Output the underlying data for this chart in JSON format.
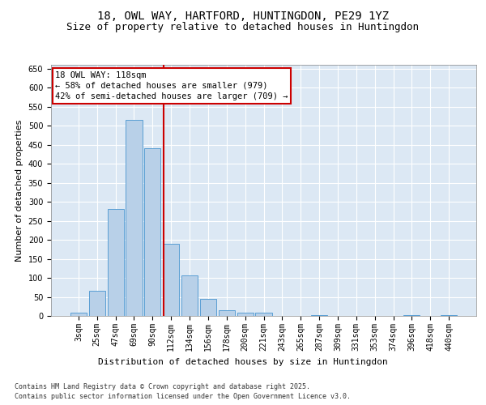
{
  "title_line1": "18, OWL WAY, HARTFORD, HUNTINGDON, PE29 1YZ",
  "title_line2": "Size of property relative to detached houses in Huntingdon",
  "xlabel": "Distribution of detached houses by size in Huntingdon",
  "ylabel": "Number of detached properties",
  "bar_color": "#b8d0e8",
  "bar_edge_color": "#5a9fd4",
  "background_color": "#dce8f4",
  "grid_color": "#ffffff",
  "categories": [
    "3sqm",
    "25sqm",
    "47sqm",
    "69sqm",
    "90sqm",
    "112sqm",
    "134sqm",
    "156sqm",
    "178sqm",
    "200sqm",
    "221sqm",
    "243sqm",
    "265sqm",
    "287sqm",
    "309sqm",
    "331sqm",
    "353sqm",
    "374sqm",
    "396sqm",
    "418sqm",
    "440sqm"
  ],
  "values": [
    8,
    65,
    280,
    515,
    440,
    190,
    107,
    45,
    15,
    8,
    9,
    0,
    0,
    3,
    0,
    0,
    0,
    0,
    3,
    0,
    3
  ],
  "ylim": [
    0,
    660
  ],
  "yticks": [
    0,
    50,
    100,
    150,
    200,
    250,
    300,
    350,
    400,
    450,
    500,
    550,
    600,
    650
  ],
  "annotation_title": "18 OWL WAY: 118sqm",
  "annotation_line1": "← 58% of detached houses are smaller (979)",
  "annotation_line2": "42% of semi-detached houses are larger (709) →",
  "annotation_box_color": "#ffffff",
  "annotation_border_color": "#cc0000",
  "vline_color": "#cc0000",
  "footer_line1": "Contains HM Land Registry data © Crown copyright and database right 2025.",
  "footer_line2": "Contains public sector information licensed under the Open Government Licence v3.0.",
  "title_fontsize": 10,
  "subtitle_fontsize": 9,
  "tick_fontsize": 7,
  "ylabel_fontsize": 8,
  "xlabel_fontsize": 8,
  "annotation_fontsize": 7.5,
  "footer_fontsize": 6,
  "vline_x": 4.58
}
